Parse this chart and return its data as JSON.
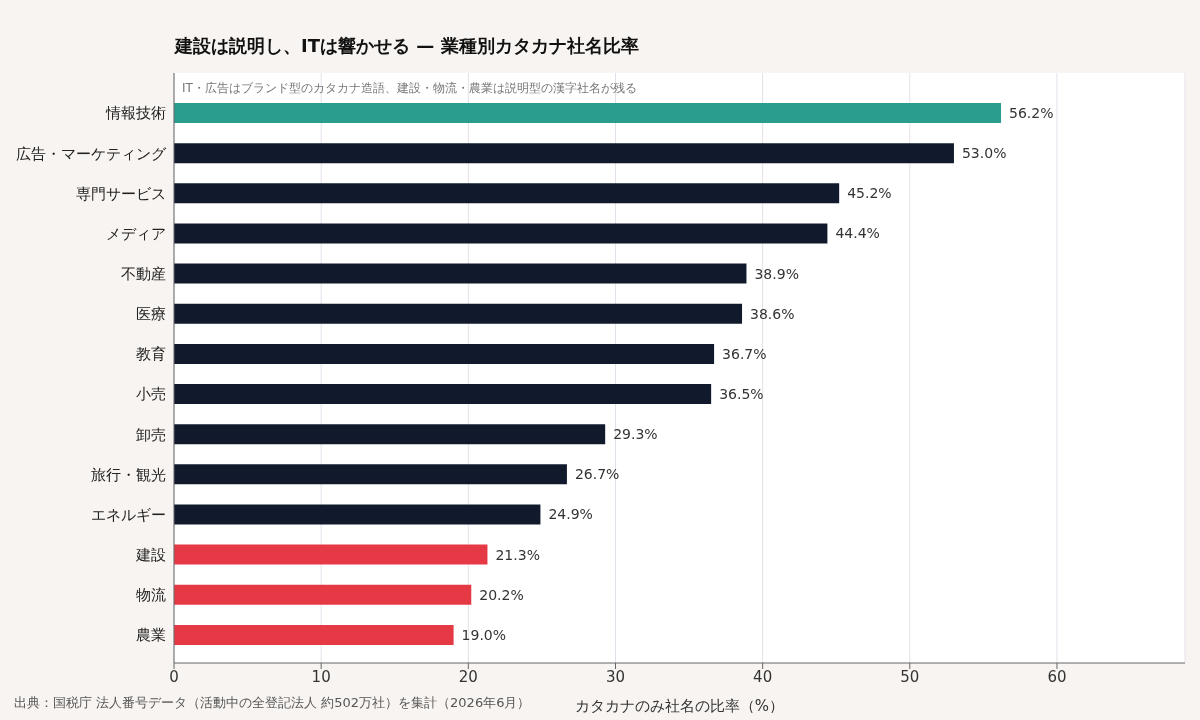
{
  "chart_data": {
    "type": "bar",
    "orientation": "horizontal",
    "title": "建設は説明し、ITは響かせる — 業種別カタカナ社名比率",
    "subtitle": "IT・広告はブランド型のカタカナ造語、建設・物流・農業は説明型の漢字社名が残る",
    "xlabel": "カタカナのみ社名の比率（%）",
    "annotations": [
      "出典：国税庁 法人番号データ（活動中の全登記法人 約502万社）を集計（2026年6月）"
    ],
    "categories": [
      "情報技術",
      "広告・マーケティング",
      "専門サービス",
      "メディア",
      "不動産",
      "医療",
      "教育",
      "小売",
      "卸売",
      "旅行・観光",
      "エネルギー",
      "建設",
      "物流",
      "農業"
    ],
    "values": [
      56.2,
      53.0,
      45.2,
      44.4,
      38.9,
      38.6,
      36.7,
      36.5,
      29.3,
      26.7,
      24.9,
      21.3,
      20.2,
      19.0
    ],
    "value_labels": [
      "56.2%",
      "53.0%",
      "45.2%",
      "44.4%",
      "38.9%",
      "38.6%",
      "36.7%",
      "36.5%",
      "29.3%",
      "26.7%",
      "24.9%",
      "21.3%",
      "20.2%",
      "19.0%"
    ],
    "colors": [
      "#2a9d8f",
      "#111a2c",
      "#111a2c",
      "#111a2c",
      "#111a2c",
      "#111a2c",
      "#111a2c",
      "#111a2c",
      "#111a2c",
      "#111a2c",
      "#111a2c",
      "#e63946",
      "#e63946",
      "#e63946"
    ],
    "xlim": [
      0,
      68.7
    ],
    "xticks": [
      0,
      10,
      20,
      30,
      40,
      50,
      60
    ],
    "grid": "x"
  }
}
